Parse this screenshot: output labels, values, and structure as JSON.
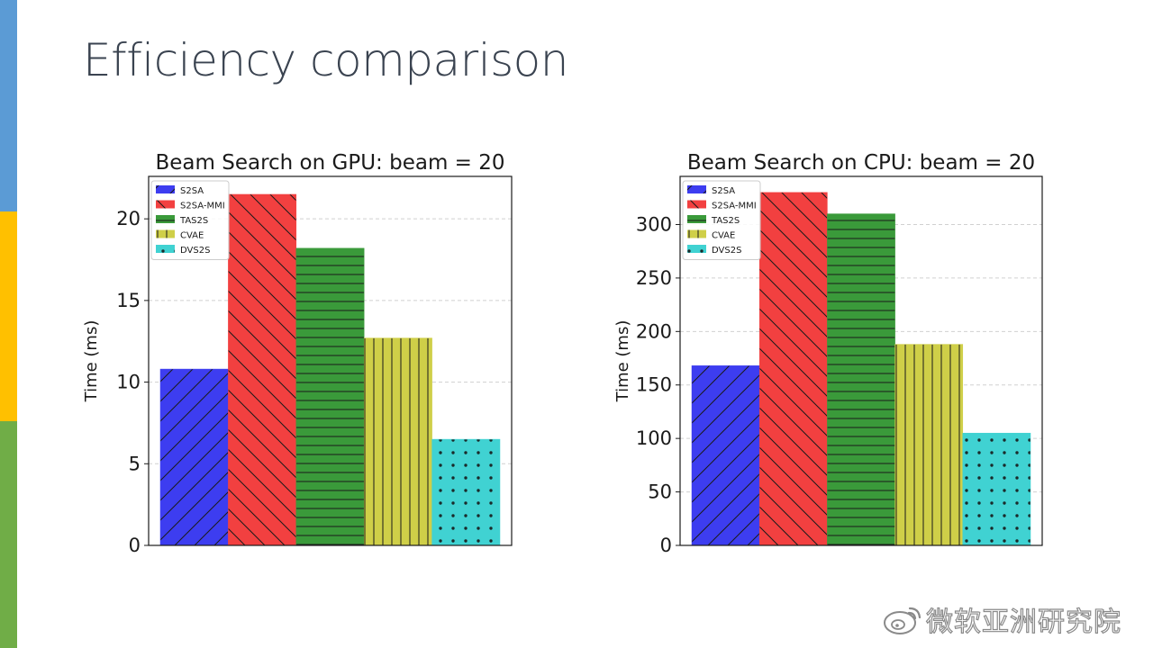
{
  "slide": {
    "title": "Efficiency comparison",
    "accent_band_colors": [
      "#5b9bd5",
      "#ffc000",
      "#70ad47"
    ]
  },
  "watermark": {
    "text": "微软亚洲研究院",
    "icon": "weibo-logo-icon"
  },
  "chart_data": [
    {
      "type": "bar",
      "title": "Beam Search on GPU: beam = 20",
      "xlabel": "",
      "ylabel": "Time (ms)",
      "ylim": [
        0,
        22.6
      ],
      "yticks": [
        0,
        5,
        10,
        15,
        20
      ],
      "grid": true,
      "legend_position": "top-left",
      "series": [
        {
          "name": "S2SA",
          "value": 10.8,
          "color": "#3d3df0",
          "hatch": "diagonal-up"
        },
        {
          "name": "S2SA-MMI",
          "value": 21.5,
          "color": "#f24040",
          "hatch": "diagonal-down"
        },
        {
          "name": "TAS2S",
          "value": 18.2,
          "color": "#3a9a3a",
          "hatch": "horizontal"
        },
        {
          "name": "CVAE",
          "value": 12.7,
          "color": "#cfcf48",
          "hatch": "vertical"
        },
        {
          "name": "DVS2S",
          "value": 6.5,
          "color": "#40d2d2",
          "hatch": "dots"
        }
      ]
    },
    {
      "type": "bar",
      "title": "Beam Search on CPU: beam = 20",
      "xlabel": "",
      "ylabel": "Time (ms)",
      "ylim": [
        0,
        345
      ],
      "yticks": [
        0,
        50,
        100,
        150,
        200,
        250,
        300
      ],
      "grid": true,
      "legend_position": "top-left",
      "series": [
        {
          "name": "S2SA",
          "value": 168,
          "color": "#3d3df0",
          "hatch": "diagonal-up"
        },
        {
          "name": "S2SA-MMI",
          "value": 330,
          "color": "#f24040",
          "hatch": "diagonal-down"
        },
        {
          "name": "TAS2S",
          "value": 310,
          "color": "#3a9a3a",
          "hatch": "horizontal"
        },
        {
          "name": "CVAE",
          "value": 188,
          "color": "#cfcf48",
          "hatch": "vertical"
        },
        {
          "name": "DVS2S",
          "value": 105,
          "color": "#40d2d2",
          "hatch": "dots"
        }
      ]
    }
  ]
}
